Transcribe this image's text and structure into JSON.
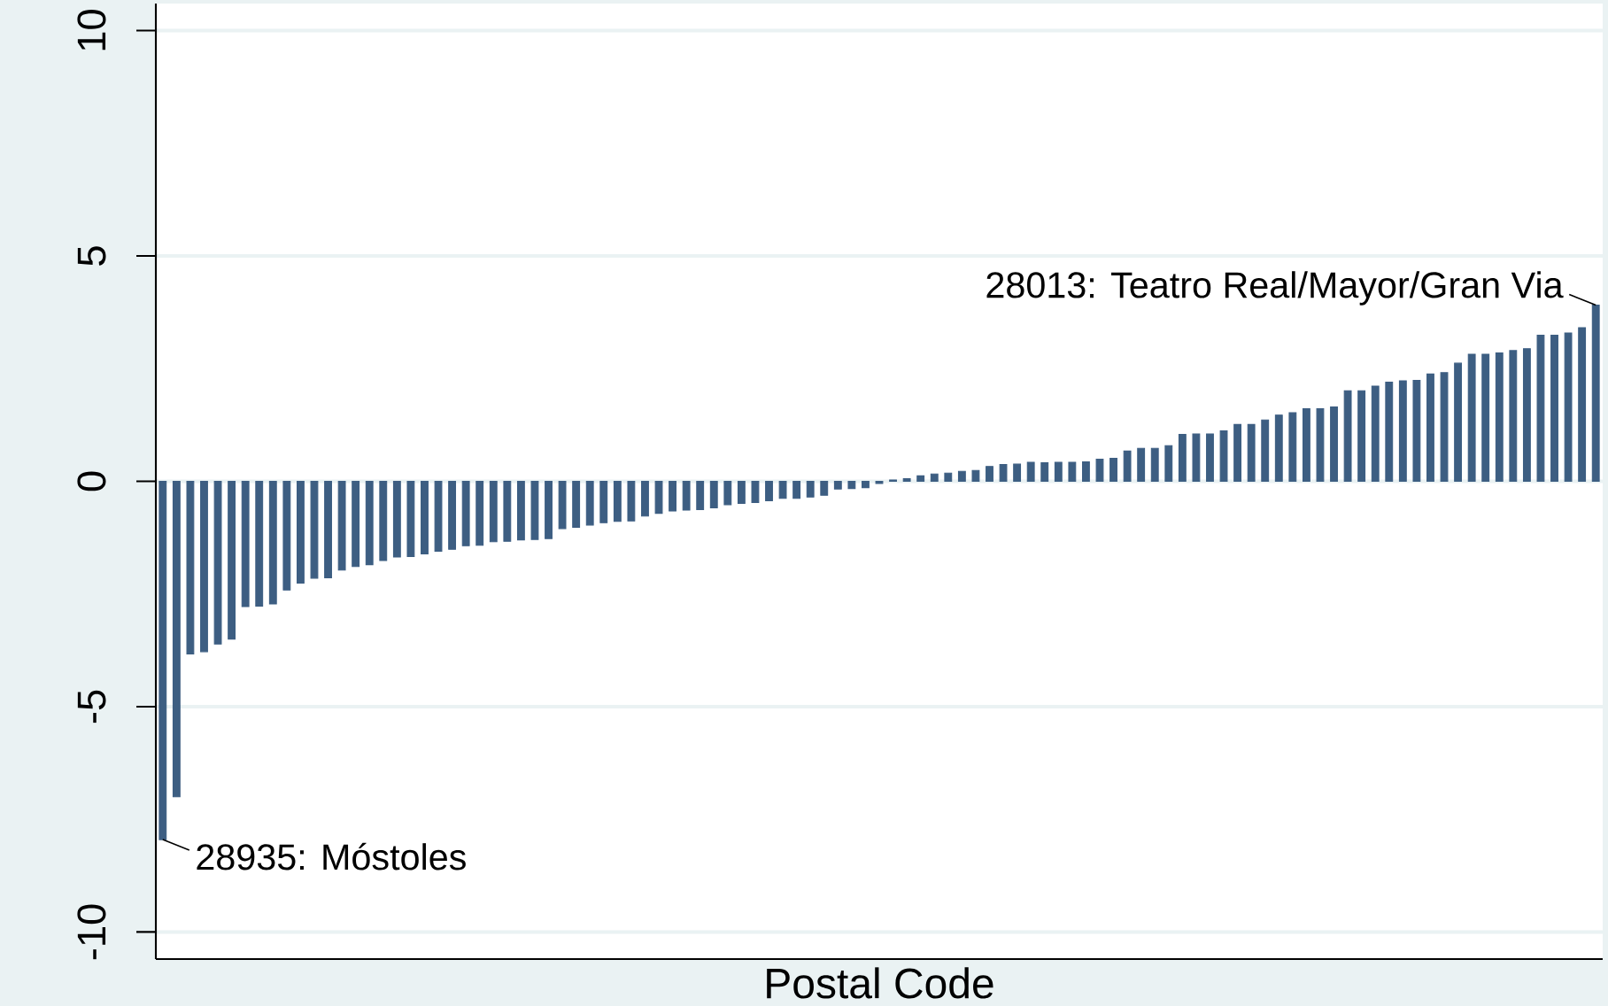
{
  "chart_data": {
    "type": "bar",
    "xlabel": "Postal Code",
    "categories": [
      null,
      null,
      null,
      null,
      null,
      null,
      null,
      null,
      null,
      null,
      null,
      null,
      null,
      null,
      null,
      null,
      null,
      null,
      null,
      null,
      null,
      null,
      null,
      null,
      null,
      null,
      null,
      null,
      null,
      null,
      null,
      null,
      null,
      null,
      null,
      null,
      null,
      null,
      null,
      null,
      null,
      null,
      null,
      null,
      null,
      null,
      null,
      null,
      null,
      null,
      null,
      null,
      null,
      null,
      null,
      null,
      null,
      null,
      null,
      null,
      null,
      null,
      null,
      null,
      null,
      null,
      null,
      null,
      null,
      null,
      null,
      null,
      null,
      null,
      null,
      null,
      null,
      null,
      null,
      null,
      null,
      null,
      null,
      null,
      null,
      null,
      null,
      null,
      null,
      null,
      null,
      null,
      null,
      null,
      null,
      null,
      null,
      null,
      null,
      null,
      null,
      null,
      null,
      null,
      null
    ],
    "values": [
      -7.95,
      -7.0,
      -3.83,
      -3.78,
      -3.61,
      -3.5,
      -2.78,
      -2.77,
      -2.72,
      -2.41,
      -2.26,
      -2.15,
      -2.14,
      -1.97,
      -1.89,
      -1.85,
      -1.76,
      -1.68,
      -1.67,
      -1.61,
      -1.55,
      -1.51,
      -1.43,
      -1.42,
      -1.34,
      -1.33,
      -1.3,
      -1.29,
      -1.27,
      -1.05,
      -1.02,
      -0.97,
      -0.92,
      -0.89,
      -0.88,
      -0.77,
      -0.71,
      -0.66,
      -0.64,
      -0.63,
      -0.59,
      -0.52,
      -0.49,
      -0.47,
      -0.43,
      -0.38,
      -0.38,
      -0.35,
      -0.31,
      -0.17,
      -0.16,
      -0.14,
      -0.05,
      0.03,
      0.06,
      0.12,
      0.16,
      0.18,
      0.22,
      0.24,
      0.33,
      0.37,
      0.38,
      0.42,
      0.41,
      0.42,
      0.42,
      0.43,
      0.49,
      0.51,
      0.67,
      0.73,
      0.73,
      0.79,
      1.04,
      1.05,
      1.05,
      1.12,
      1.26,
      1.26,
      1.36,
      1.47,
      1.52,
      1.61,
      1.61,
      1.65,
      2.01,
      2.01,
      2.11,
      2.2,
      2.23,
      2.24,
      2.38,
      2.41,
      2.62,
      2.82,
      2.82,
      2.85,
      2.9,
      2.94,
      3.24,
      3.24,
      3.29,
      3.41,
      3.91
    ],
    "color": "#3d5e82",
    "ylim": [
      -10.6,
      10.6
    ],
    "yticks": [
      -10,
      -5,
      0,
      5,
      10
    ],
    "grid": "y",
    "annotations": [
      "28935: Móstoles",
      "28013: Teatro Real/Mayor/Gran Via"
    ]
  }
}
